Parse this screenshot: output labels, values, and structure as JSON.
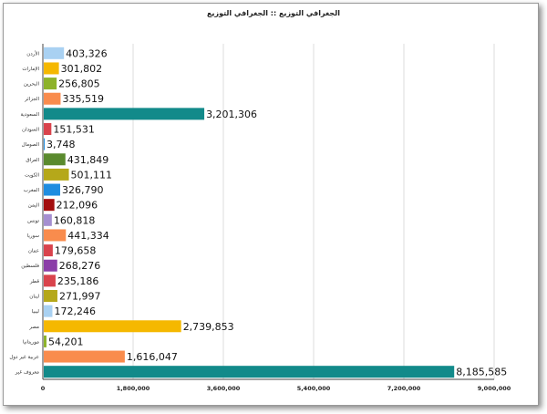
{
  "chart_data": {
    "type": "bar",
    "orientation": "horizontal",
    "title": "الجغرافي التوزيع :: الجغرافي التوزيع",
    "categories": [
      "الأردن",
      "الإمارات",
      "البحرين",
      "الجزائر",
      "السعودية",
      "السودان",
      "الصومال",
      "العراق",
      "الكويت",
      "المغرب",
      "اليمن",
      "تونس",
      "سوريا",
      "عمان",
      "فلسطين",
      "قطر",
      "لبنان",
      "ليبيا",
      "مصر",
      "موريتانيا",
      "عربية غير دول",
      "معروف غير"
    ],
    "values": [
      403326,
      301802,
      256805,
      335519,
      3201306,
      151531,
      3748,
      431849,
      501111,
      326790,
      212096,
      160818,
      441334,
      179658,
      268276,
      235186,
      271997,
      172246,
      2739853,
      54201,
      1616047,
      8185585
    ],
    "labels": [
      "403,326",
      "301,802",
      "256,805",
      "335,519",
      "3,201,306",
      "151,531",
      "3,748",
      "431,849",
      "501,111",
      "326,790",
      "212,096",
      "160,818",
      "441,334",
      "179,658",
      "268,276",
      "235,186",
      "271,997",
      "172,246",
      "2,739,853",
      "54,201",
      "1,616,047",
      "8,185,585"
    ],
    "colors": [
      "#a9d1f2",
      "#f5b800",
      "#8db32b",
      "#f98c4d",
      "#128a8a",
      "#d9434c",
      "#1f8de0",
      "#5a8a2e",
      "#b5a81a",
      "#1f8de0",
      "#a30e0e",
      "#a58fd0",
      "#f98c4d",
      "#d9434c",
      "#8b3ea8",
      "#d9434c",
      "#b5a81a",
      "#a9d1f2",
      "#f5b800",
      "#8db32b",
      "#f98c4d",
      "#128a8a"
    ],
    "xlim": [
      0,
      9000000
    ],
    "xticks": [
      "0",
      "1,800,000",
      "3,600,000",
      "5,400,000",
      "7,200,000",
      "9,000,000"
    ],
    "grid": true
  }
}
